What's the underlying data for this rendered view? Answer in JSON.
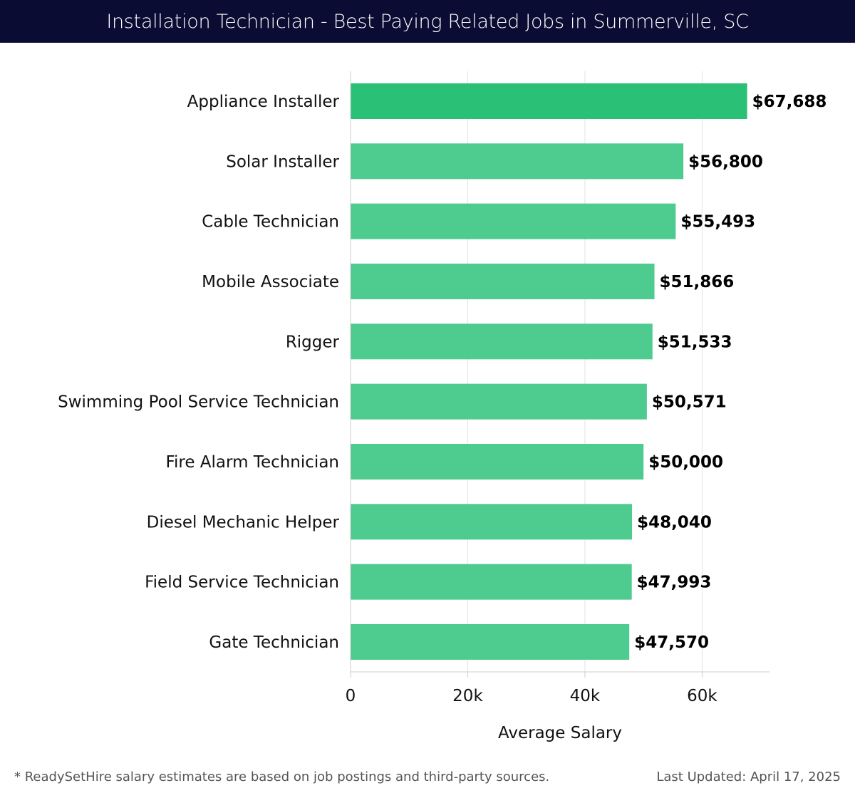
{
  "header": {
    "title": "Installation Technician - Best Paying Related Jobs in Summerville, SC"
  },
  "chart_data": {
    "type": "bar",
    "orientation": "horizontal",
    "categories": [
      "Appliance Installer",
      "Solar Installer",
      "Cable Technician",
      "Mobile Associate",
      "Rigger",
      "Swimming Pool Service Technician",
      "Fire Alarm Technician",
      "Diesel Mechanic Helper",
      "Field Service Technician",
      "Gate Technician"
    ],
    "values": [
      67688,
      56800,
      55493,
      51866,
      51533,
      50571,
      50000,
      48040,
      47993,
      47570
    ],
    "value_labels": [
      "$67,688",
      "$56,800",
      "$55,493",
      "$51,866",
      "$51,533",
      "$50,571",
      "$50,000",
      "$48,040",
      "$47,993",
      "$47,570"
    ],
    "xlabel": "Average Salary",
    "ylabel": "",
    "xlim": [
      0,
      71500
    ],
    "xticks": [
      0,
      20000,
      40000,
      60000
    ],
    "xtick_labels": [
      "0",
      "20k",
      "40k",
      "60k"
    ],
    "grid": true,
    "colors": {
      "top_bar": "#2ac177",
      "bar": "#4ecb8f",
      "gridline": "#e3e3e3",
      "axis": "#cccccc"
    }
  },
  "footer": {
    "note": "* ReadySetHire salary estimates are based on job postings and third-party sources.",
    "updated": "Last Updated: April 17, 2025"
  }
}
